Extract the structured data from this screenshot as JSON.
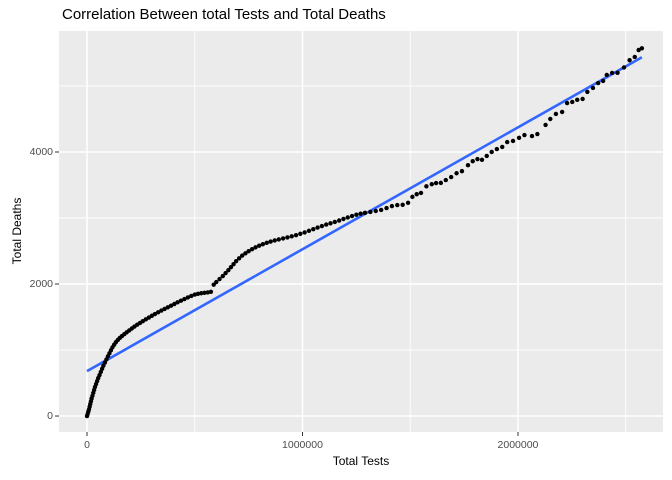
{
  "chart_data": {
    "type": "scatter",
    "title": "Correlation Between total Tests and Total Deaths",
    "xlabel": "Total Tests",
    "ylabel": "Total Deaths",
    "legend": "none",
    "grid": true,
    "panel_bg": "#EBEBEB",
    "grid_color": "#FFFFFF",
    "point_color": "#000000",
    "tick_mark_color": "#333333",
    "tick_label_color": "#4D4D4D",
    "xlim": [
      -130000,
      2673000
    ],
    "ylim": [
      -242,
      5833
    ],
    "x_ticks": [
      {
        "value": 0,
        "label": "0"
      },
      {
        "value": 1000000,
        "label": "1000000"
      },
      {
        "value": 2000000,
        "label": "2000000"
      }
    ],
    "x_minor_ticks": [
      500000,
      1500000,
      2500000
    ],
    "y_ticks": [
      {
        "value": 0,
        "label": "0"
      },
      {
        "value": 2000,
        "label": "2000"
      },
      {
        "value": 4000,
        "label": "4000"
      }
    ],
    "y_minor_ticks": [
      1000,
      3000,
      5000
    ],
    "trend_line": {
      "type": "linear",
      "color": "#3366FF",
      "x1": 0,
      "y1": 680,
      "x2": 2575000,
      "y2": 5435
    },
    "points": [
      [
        0,
        0
      ],
      [
        3000,
        30
      ],
      [
        6000,
        65
      ],
      [
        9000,
        100
      ],
      [
        12000,
        140
      ],
      [
        15000,
        180
      ],
      [
        18000,
        220
      ],
      [
        21000,
        262
      ],
      [
        25000,
        305
      ],
      [
        29000,
        350
      ],
      [
        33000,
        395
      ],
      [
        37000,
        440
      ],
      [
        42000,
        485
      ],
      [
        47000,
        530
      ],
      [
        52000,
        575
      ],
      [
        58000,
        620
      ],
      [
        64000,
        668
      ],
      [
        70000,
        715
      ],
      [
        76000,
        762
      ],
      [
        83000,
        810
      ],
      [
        90000,
        858
      ],
      [
        97000,
        905
      ],
      [
        104000,
        950
      ],
      [
        111000,
        995
      ],
      [
        118000,
        1040
      ],
      [
        126000,
        1080
      ],
      [
        134000,
        1118
      ],
      [
        143000,
        1152
      ],
      [
        152000,
        1183
      ],
      [
        162000,
        1212
      ],
      [
        173000,
        1240
      ],
      [
        184000,
        1268
      ],
      [
        196000,
        1297
      ],
      [
        208000,
        1326
      ],
      [
        220000,
        1355
      ],
      [
        233000,
        1383
      ],
      [
        246000,
        1410
      ],
      [
        259000,
        1437
      ],
      [
        273000,
        1465
      ],
      [
        287000,
        1492
      ],
      [
        301000,
        1519
      ],
      [
        315000,
        1545
      ],
      [
        330000,
        1571
      ],
      [
        345000,
        1597
      ],
      [
        360000,
        1622
      ],
      [
        375000,
        1647
      ],
      [
        390000,
        1672
      ],
      [
        405000,
        1697
      ],
      [
        420000,
        1722
      ],
      [
        436000,
        1747
      ],
      [
        452000,
        1772
      ],
      [
        468000,
        1796
      ],
      [
        484000,
        1820
      ],
      [
        500000,
        1840
      ],
      [
        515000,
        1852
      ],
      [
        530000,
        1860
      ],
      [
        545000,
        1866
      ],
      [
        560000,
        1872
      ],
      [
        575000,
        1882
      ],
      [
        588000,
        1990
      ],
      [
        600000,
        2030
      ],
      [
        615000,
        2075
      ],
      [
        630000,
        2120
      ],
      [
        643000,
        2165
      ],
      [
        656000,
        2210
      ],
      [
        668000,
        2255
      ],
      [
        680000,
        2300
      ],
      [
        692000,
        2345
      ],
      [
        706000,
        2390
      ],
      [
        720000,
        2430
      ],
      [
        735000,
        2465
      ],
      [
        750000,
        2497
      ],
      [
        766000,
        2527
      ],
      [
        782000,
        2555
      ],
      [
        799000,
        2580
      ],
      [
        816000,
        2603
      ],
      [
        834000,
        2624
      ],
      [
        852000,
        2643
      ],
      [
        871000,
        2660
      ],
      [
        890000,
        2676
      ],
      [
        910000,
        2691
      ],
      [
        930000,
        2706
      ],
      [
        950000,
        2722
      ],
      [
        970000,
        2740
      ],
      [
        990000,
        2760
      ],
      [
        1010000,
        2782
      ],
      [
        1030000,
        2806
      ],
      [
        1050000,
        2830
      ],
      [
        1070000,
        2855
      ],
      [
        1090000,
        2878
      ],
      [
        1110000,
        2900
      ],
      [
        1130000,
        2920
      ],
      [
        1150000,
        2940
      ],
      [
        1170000,
        2962
      ],
      [
        1190000,
        2985
      ],
      [
        1210000,
        3008
      ],
      [
        1230000,
        3030
      ],
      [
        1250000,
        3050
      ],
      [
        1270000,
        3065
      ],
      [
        1290000,
        3078
      ],
      [
        1315000,
        3092
      ],
      [
        1340000,
        3106
      ],
      [
        1365000,
        3122
      ],
      [
        1390000,
        3150
      ],
      [
        1415000,
        3180
      ],
      [
        1440000,
        3196
      ],
      [
        1465000,
        3200
      ],
      [
        1490000,
        3230
      ],
      [
        1510000,
        3320
      ],
      [
        1530000,
        3360
      ],
      [
        1550000,
        3380
      ],
      [
        1575000,
        3480
      ],
      [
        1600000,
        3513
      ],
      [
        1620000,
        3530
      ],
      [
        1642000,
        3532
      ],
      [
        1665000,
        3575
      ],
      [
        1690000,
        3620
      ],
      [
        1715000,
        3678
      ],
      [
        1740000,
        3710
      ],
      [
        1768000,
        3800
      ],
      [
        1790000,
        3860
      ],
      [
        1812000,
        3892
      ],
      [
        1833000,
        3882
      ],
      [
        1855000,
        3940
      ],
      [
        1878000,
        4000
      ],
      [
        1902000,
        4045
      ],
      [
        1927000,
        4076
      ],
      [
        1950000,
        4150
      ],
      [
        1977000,
        4167
      ],
      [
        2005000,
        4215
      ],
      [
        2030000,
        4257
      ],
      [
        2065000,
        4242
      ],
      [
        2090000,
        4272
      ],
      [
        2128000,
        4410
      ],
      [
        2150000,
        4500
      ],
      [
        2176000,
        4576
      ],
      [
        2205000,
        4606
      ],
      [
        2228000,
        4742
      ],
      [
        2252000,
        4758
      ],
      [
        2275000,
        4790
      ],
      [
        2300000,
        4803
      ],
      [
        2322000,
        4910
      ],
      [
        2348000,
        4970
      ],
      [
        2372000,
        5045
      ],
      [
        2395000,
        5076
      ],
      [
        2412000,
        5167
      ],
      [
        2437000,
        5197
      ],
      [
        2462000,
        5200
      ],
      [
        2492000,
        5280
      ],
      [
        2518000,
        5390
      ],
      [
        2542000,
        5440
      ],
      [
        2560000,
        5545
      ],
      [
        2575000,
        5570
      ]
    ]
  },
  "layout_labels": {
    "panel_name": "plot-panel"
  }
}
